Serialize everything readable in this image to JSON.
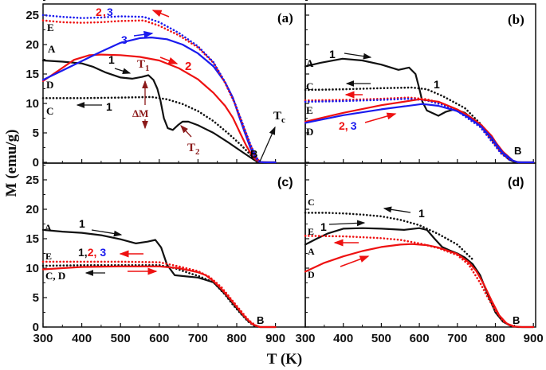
{
  "figure": {
    "ylabel": "M (emu/g)",
    "xlabel": "T (K)"
  },
  "colors": {
    "curve1": "#111111",
    "curve2": "#ee1111",
    "curve3": "#1a1aee",
    "annotation": "#8b1a1a"
  },
  "chart_data": [
    {
      "type": "line",
      "panel": "(a)",
      "xlim": [
        300,
        900
      ],
      "ylim": [
        0,
        27
      ],
      "xticks": [
        300,
        400,
        500,
        600,
        700,
        800,
        900
      ],
      "yticks": [
        0,
        5,
        10,
        15,
        20,
        25
      ],
      "grid": false,
      "series": [
        {
          "name": "1",
          "style": "solid",
          "color": "#111111",
          "x": [
            300,
            350,
            400,
            430,
            460,
            500,
            530,
            555,
            572,
            585,
            595,
            603,
            612,
            622,
            635,
            648,
            660,
            675,
            700,
            740,
            780,
            820,
            845,
            855,
            870,
            900
          ],
          "y": [
            17.3,
            17.1,
            16.8,
            16.2,
            15.3,
            14.4,
            14.2,
            14.5,
            14.8,
            14.0,
            12.5,
            10.5,
            7.5,
            5.8,
            5.5,
            6.3,
            6.9,
            6.9,
            6.3,
            5.0,
            3.3,
            1.5,
            0.4,
            0.05,
            0,
            0
          ]
        },
        {
          "name": "1",
          "style": "dotted",
          "color": "#111111",
          "x": [
            300,
            400,
            500,
            580,
            620,
            660,
            700,
            740,
            780,
            810,
            840,
            855
          ],
          "y": [
            10.9,
            10.9,
            11.0,
            11.1,
            10.7,
            9.9,
            8.7,
            7.0,
            4.8,
            3.0,
            1.0,
            0.1
          ]
        },
        {
          "name": "2",
          "style": "solid",
          "color": "#ee1111",
          "x": [
            300,
            340,
            380,
            420,
            450,
            500,
            550,
            600,
            650,
            700,
            740,
            770,
            790,
            810,
            825,
            840,
            850,
            860,
            880,
            900
          ],
          "y": [
            13.8,
            15.6,
            17.4,
            18.2,
            18.3,
            18.2,
            17.9,
            17.3,
            16.0,
            14.1,
            11.8,
            9.6,
            7.6,
            4.8,
            2.8,
            1.1,
            0.4,
            0.05,
            0,
            0
          ]
        },
        {
          "name": "3",
          "style": "solid",
          "color": "#1a1aee",
          "x": [
            300,
            350,
            400,
            450,
            500,
            550,
            580,
            620,
            660,
            700,
            740,
            770,
            790,
            806,
            820,
            835,
            848,
            858,
            870,
            900
          ],
          "y": [
            14.0,
            15.6,
            17.2,
            18.8,
            20.3,
            21.1,
            21.2,
            20.9,
            20.0,
            18.5,
            16.3,
            13.6,
            11.0,
            7.8,
            5.2,
            2.5,
            0.8,
            0.1,
            0,
            0
          ]
        },
        {
          "name": "2",
          "style": "dotted",
          "color": "#ee1111",
          "x": [
            300,
            350,
            400,
            450,
            500,
            560,
            600,
            650,
            700,
            740,
            770,
            795,
            815,
            835,
            850,
            860
          ],
          "y": [
            24.1,
            23.8,
            23.7,
            23.8,
            24.0,
            24.1,
            23.2,
            21.6,
            19.5,
            16.9,
            13.5,
            10.0,
            6.5,
            3.0,
            0.8,
            0.1
          ]
        },
        {
          "name": "3",
          "style": "dotted",
          "color": "#1a1aee",
          "x": [
            300,
            350,
            400,
            450,
            500,
            560,
            600,
            650,
            700,
            740,
            770,
            795,
            815,
            835,
            850,
            860
          ],
          "y": [
            25.0,
            24.7,
            24.5,
            24.6,
            24.8,
            24.7,
            23.8,
            22.0,
            19.7,
            17.0,
            13.6,
            10.1,
            6.6,
            3.1,
            0.9,
            0.1
          ]
        }
      ],
      "annotations": [
        "(a)",
        "2",
        ",",
        "3",
        "E",
        "3",
        "A",
        "1",
        "T",
        "1",
        "2",
        "D",
        "C",
        "1",
        "ΔM",
        "T",
        "2",
        "B",
        "T",
        "c"
      ]
    },
    {
      "type": "line",
      "panel": "(b)",
      "xlim": [
        300,
        900
      ],
      "ylim": [
        0,
        27
      ],
      "xticks": [
        300,
        400,
        500,
        600,
        700,
        800,
        900
      ],
      "yticks": [
        0,
        5,
        10,
        15,
        20,
        25
      ],
      "grid": false,
      "series": [
        {
          "name": "1",
          "style": "solid",
          "color": "#111111",
          "x": [
            300,
            340,
            398,
            450,
            500,
            545,
            573,
            590,
            600,
            608,
            620,
            650,
            670,
            692,
            720,
            760,
            790,
            815,
            835,
            850,
            870,
            900
          ],
          "y": [
            16.3,
            16.9,
            17.6,
            17.3,
            16.6,
            15.7,
            16.1,
            15.0,
            12.5,
            10.3,
            8.8,
            7.9,
            8.6,
            9.0,
            8.4,
            6.3,
            4.0,
            1.8,
            0.5,
            0.05,
            0,
            0
          ]
        },
        {
          "name": "1",
          "style": "dotted",
          "color": "#111111",
          "x": [
            300,
            400,
            500,
            580,
            620,
            660,
            700,
            720,
            760,
            790,
            815,
            840
          ],
          "y": [
            12.3,
            12.4,
            12.6,
            12.7,
            12.4,
            11.3,
            9.9,
            9.2,
            6.6,
            4.0,
            1.8,
            0.3
          ]
        },
        {
          "name": "2",
          "style": "dotted",
          "color": "#ee1111",
          "x": [
            300,
            400,
            500,
            573,
            620,
            660,
            700,
            760,
            790,
            815,
            840
          ],
          "y": [
            10.5,
            10.6,
            10.8,
            11.0,
            10.7,
            10.0,
            8.9,
            6.2,
            3.8,
            1.6,
            0.3
          ]
        },
        {
          "name": "3",
          "style": "dotted",
          "color": "#1a1aee",
          "x": [
            300,
            400,
            500,
            573,
            620,
            660,
            700,
            760,
            790,
            815,
            840
          ],
          "y": [
            10.3,
            10.4,
            10.6,
            10.8,
            10.5,
            9.8,
            8.7,
            6.0,
            3.6,
            1.5,
            0.3
          ]
        },
        {
          "name": "2",
          "style": "solid",
          "color": "#ee1111",
          "x": [
            300,
            400,
            500,
            600,
            650,
            699,
            730,
            762,
            790,
            803,
            820,
            846,
            860,
            900
          ],
          "y": [
            6.9,
            8.4,
            9.7,
            10.7,
            10.3,
            9.0,
            7.9,
            6.4,
            4.5,
            3.2,
            1.8,
            0.3,
            0,
            0
          ]
        },
        {
          "name": "3",
          "style": "solid",
          "color": "#1a1aee",
          "x": [
            300,
            400,
            500,
            608,
            650,
            699,
            730,
            762,
            790,
            803,
            820,
            846,
            860,
            900
          ],
          "y": [
            6.7,
            8.0,
            9.0,
            9.9,
            9.6,
            8.7,
            7.6,
            6.1,
            4.2,
            3.0,
            1.6,
            0.3,
            0,
            0
          ]
        }
      ],
      "annotations": [
        "(b)",
        "A",
        "1",
        "C",
        "1",
        "E",
        "D",
        "2,",
        "3",
        "B"
      ]
    },
    {
      "type": "line",
      "panel": "(c)",
      "xlim": [
        300,
        900
      ],
      "ylim": [
        0,
        27
      ],
      "xticks": [
        300,
        400,
        500,
        600,
        700,
        800,
        900
      ],
      "yticks": [
        0,
        5,
        10,
        15,
        20,
        25
      ],
      "grid": false,
      "series": [
        {
          "name": "1",
          "style": "solid",
          "color": "#111111",
          "x": [
            300,
            350,
            400,
            450,
            500,
            540,
            570,
            590,
            605,
            620,
            640,
            670,
            700,
            740,
            770,
            790,
            810,
            830,
            845,
            860,
            900
          ],
          "y": [
            16.5,
            16.2,
            16.0,
            15.6,
            14.9,
            14.2,
            14.5,
            14.8,
            13.5,
            10.6,
            8.8,
            8.6,
            8.4,
            7.6,
            5.6,
            4.0,
            2.4,
            1.0,
            0.3,
            0,
            0
          ]
        },
        {
          "name": "1",
          "style": "dotted",
          "color": "#111111",
          "x": [
            300,
            400,
            500,
            600,
            640,
            680,
            700,
            740,
            770,
            790,
            810,
            830,
            845,
            860
          ],
          "y": [
            10.4,
            10.5,
            10.5,
            10.5,
            10.0,
            9.1,
            8.7,
            7.6,
            5.5,
            3.8,
            2.3,
            0.9,
            0.2,
            0
          ]
        },
        {
          "name": "2",
          "style": "dotted",
          "color": "#ee1111",
          "x": [
            300,
            400,
            500,
            600,
            650,
            700,
            730,
            760,
            790,
            810,
            830,
            850,
            860
          ],
          "y": [
            11.1,
            11.1,
            11.1,
            11.0,
            10.3,
            9.5,
            8.5,
            6.8,
            4.4,
            2.8,
            1.2,
            0.2,
            0
          ]
        },
        {
          "name": "2",
          "style": "solid",
          "color": "#ee1111",
          "x": [
            300,
            350,
            400,
            500,
            600,
            650,
            700,
            720,
            740,
            760,
            780,
            800,
            820,
            840,
            860,
            900
          ],
          "y": [
            9.8,
            10.0,
            10.2,
            10.3,
            10.3,
            10.0,
            9.3,
            8.8,
            7.8,
            6.5,
            5.0,
            3.4,
            1.8,
            0.5,
            0,
            0
          ]
        }
      ],
      "annotations": [
        "(c)",
        "A",
        "1",
        "E",
        "1,",
        "2,",
        "3",
        "C, D",
        "B"
      ]
    },
    {
      "type": "line",
      "panel": "(d)",
      "xlim": [
        300,
        900
      ],
      "ylim": [
        0,
        27
      ],
      "xticks": [
        300,
        400,
        500,
        600,
        700,
        800,
        900
      ],
      "yticks": [
        0,
        5,
        10,
        15,
        20,
        25
      ],
      "grid": false,
      "series": [
        {
          "name": "1",
          "style": "dotted",
          "color": "#111111",
          "x": [
            300,
            350,
            400,
            450,
            500,
            550,
            600,
            650,
            700,
            740
          ],
          "y": [
            19.4,
            19.4,
            19.3,
            19.1,
            18.8,
            18.2,
            17.3,
            15.8,
            14.0,
            11.5
          ]
        },
        {
          "name": "1",
          "style": "solid",
          "color": "#111111",
          "x": [
            300,
            330,
            360,
            400,
            450,
            500,
            560,
            600,
            620,
            640,
            660,
            680,
            700,
            720,
            740,
            760,
            780,
            800,
            820,
            840,
            860,
            900
          ],
          "y": [
            14.0,
            15.0,
            15.9,
            16.7,
            16.8,
            16.7,
            16.5,
            16.8,
            16.5,
            15.0,
            13.6,
            13.0,
            12.5,
            11.8,
            10.7,
            8.8,
            5.5,
            2.5,
            0.9,
            0.2,
            0,
            0
          ]
        },
        {
          "name": "2",
          "style": "dotted",
          "color": "#ee1111",
          "x": [
            300,
            400,
            500,
            550,
            600,
            650,
            700,
            730,
            760,
            780,
            800,
            820,
            840,
            855
          ],
          "y": [
            15.5,
            15.4,
            15.1,
            14.8,
            14.2,
            13.4,
            12.2,
            10.6,
            7.5,
            5.0,
            2.8,
            1.0,
            0.2,
            0
          ]
        },
        {
          "name": "2",
          "style": "solid",
          "color": "#ee1111",
          "x": [
            300,
            350,
            400,
            450,
            500,
            550,
            580,
            620,
            650,
            700,
            730,
            750,
            770,
            790,
            810,
            830,
            850,
            870,
            900
          ],
          "y": [
            9.4,
            10.9,
            12.0,
            12.9,
            13.6,
            14.0,
            14.1,
            13.9,
            13.5,
            12.4,
            11.0,
            9.5,
            7.2,
            4.5,
            2.0,
            0.6,
            0.1,
            0,
            0
          ]
        }
      ],
      "annotations": [
        "(d)",
        "C",
        "1",
        "E",
        "1",
        "A",
        "D",
        "B"
      ]
    }
  ]
}
